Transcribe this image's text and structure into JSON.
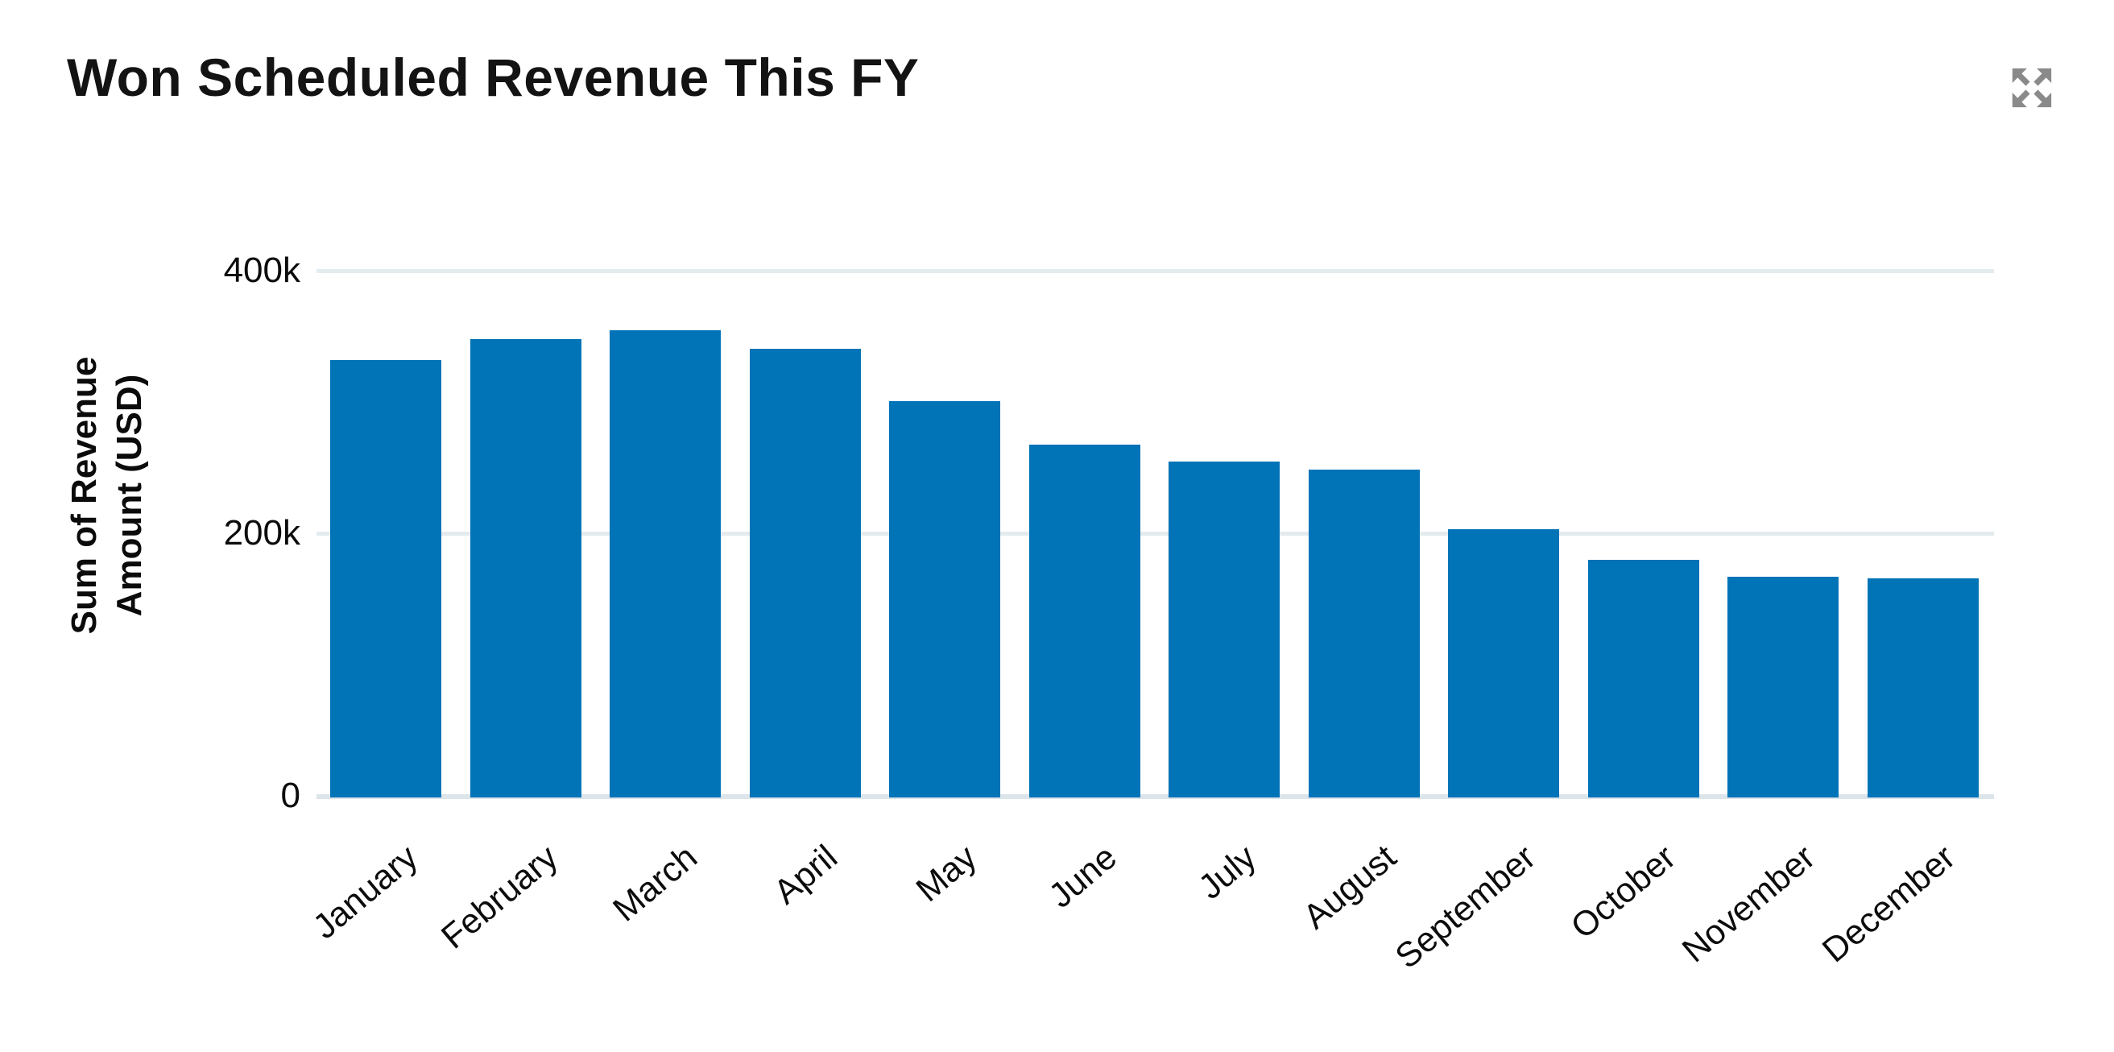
{
  "header": {
    "title": "Won Scheduled Revenue This FY",
    "expand_icon": "expand-arrows-icon"
  },
  "colors": {
    "bar": "#0173b7",
    "gridline": "#e4ebef",
    "axis_baseline": "#dce5ea",
    "title_text": "#131313",
    "axis_text": "#0c0c0c",
    "icon": "#8a8a8a",
    "background": "#ffffff"
  },
  "chart_data": {
    "type": "bar",
    "title": "Won Scheduled Revenue This FY",
    "categories": [
      "January",
      "February",
      "March",
      "April",
      "May",
      "June",
      "July",
      "August",
      "September",
      "October",
      "November",
      "December"
    ],
    "values": [
      333000,
      349000,
      356000,
      342000,
      302000,
      269000,
      256000,
      250000,
      204000,
      181000,
      168000,
      167000
    ],
    "xlabel": "",
    "ylabel": "Sum of Revenue Amount (USD)",
    "ylabel_lines": [
      "Sum of Revenue",
      "Amount (USD)"
    ],
    "ylim": [
      0,
      400000
    ],
    "yticks": [
      {
        "value": 400000,
        "label": "400k"
      },
      {
        "value": 200000,
        "label": "200k"
      },
      {
        "value": 0,
        "label": "0"
      }
    ],
    "grid": "horizontal",
    "legend": "none",
    "bar_color": "#0173b7",
    "x_label_rotation_deg": -40
  }
}
